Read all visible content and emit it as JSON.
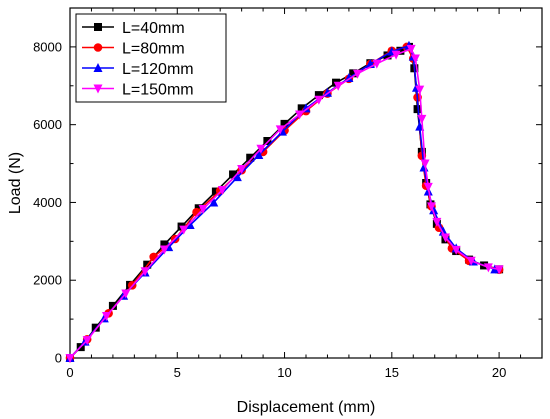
{
  "chart_data": {
    "type": "line",
    "xlabel": "Displacement (mm)",
    "ylabel": "Load (N)",
    "xlim": [
      0,
      22
    ],
    "ylim": [
      0,
      9000
    ],
    "x_ticks": [
      0,
      5,
      10,
      15,
      20
    ],
    "y_ticks": [
      0,
      2000,
      4000,
      6000,
      8000
    ],
    "x_minor_step": 1,
    "y_minor_step": 1000,
    "grid": false,
    "legend_position": "top-left",
    "series": [
      {
        "name": "L=40mm",
        "color": "#000000",
        "marker": "square",
        "points": [
          [
            0,
            0
          ],
          [
            0.5,
            280
          ],
          [
            1.2,
            780
          ],
          [
            2,
            1340
          ],
          [
            2.8,
            1880
          ],
          [
            3.6,
            2400
          ],
          [
            4.4,
            2920
          ],
          [
            5.2,
            3380
          ],
          [
            6,
            3850
          ],
          [
            6.8,
            4280
          ],
          [
            7.6,
            4720
          ],
          [
            8.4,
            5150
          ],
          [
            9.2,
            5580
          ],
          [
            10,
            6020
          ],
          [
            10.8,
            6420
          ],
          [
            11.6,
            6760
          ],
          [
            12.4,
            7080
          ],
          [
            13.2,
            7320
          ],
          [
            14,
            7580
          ],
          [
            14.8,
            7780
          ],
          [
            15.4,
            7900
          ],
          [
            15.8,
            8000
          ],
          [
            16.05,
            7450
          ],
          [
            16.2,
            6400
          ],
          [
            16.4,
            5300
          ],
          [
            16.6,
            4500
          ],
          [
            16.8,
            3950
          ],
          [
            17.1,
            3450
          ],
          [
            17.5,
            3050
          ],
          [
            18,
            2750
          ],
          [
            18.6,
            2530
          ],
          [
            19.3,
            2380
          ],
          [
            20,
            2280
          ]
        ]
      },
      {
        "name": "L=80mm",
        "color": "#ff0000",
        "marker": "circle",
        "points": [
          [
            0,
            0
          ],
          [
            0.8,
            480
          ],
          [
            1.8,
            1150
          ],
          [
            2.9,
            1870
          ],
          [
            3.9,
            2600
          ],
          [
            4.9,
            3060
          ],
          [
            5.9,
            3750
          ],
          [
            7,
            4300
          ],
          [
            8,
            4830
          ],
          [
            9,
            5300
          ],
          [
            10,
            5850
          ],
          [
            11,
            6350
          ],
          [
            12,
            6800
          ],
          [
            13,
            7180
          ],
          [
            14,
            7560
          ],
          [
            15,
            7900
          ],
          [
            15.7,
            8000
          ],
          [
            16,
            7700
          ],
          [
            16.2,
            6700
          ],
          [
            16.4,
            5200
          ],
          [
            16.6,
            4430
          ],
          [
            16.85,
            3900
          ],
          [
            17.2,
            3350
          ],
          [
            17.8,
            2820
          ],
          [
            18.6,
            2500
          ],
          [
            20,
            2270
          ]
        ]
      },
      {
        "name": "L=120mm",
        "color": "#0000ff",
        "marker": "triangle-up",
        "points": [
          [
            0,
            0
          ],
          [
            0.7,
            420
          ],
          [
            1.6,
            1020
          ],
          [
            2.5,
            1600
          ],
          [
            3.5,
            2200
          ],
          [
            4.6,
            2850
          ],
          [
            5.6,
            3420
          ],
          [
            6.7,
            4000
          ],
          [
            7.8,
            4650
          ],
          [
            8.8,
            5220
          ],
          [
            9.9,
            5820
          ],
          [
            11,
            6420
          ],
          [
            12,
            6820
          ],
          [
            13,
            7200
          ],
          [
            14,
            7560
          ],
          [
            15,
            7880
          ],
          [
            15.8,
            8030
          ],
          [
            16,
            7750
          ],
          [
            16.15,
            6950
          ],
          [
            16.3,
            5950
          ],
          [
            16.5,
            4900
          ],
          [
            16.7,
            4280
          ],
          [
            16.95,
            3800
          ],
          [
            17.4,
            3250
          ],
          [
            18,
            2820
          ],
          [
            18.8,
            2480
          ],
          [
            19.8,
            2280
          ]
        ]
      },
      {
        "name": "L=150mm",
        "color": "#ff00ff",
        "marker": "triangle-down",
        "points": [
          [
            0,
            0
          ],
          [
            0.8,
            460
          ],
          [
            1.7,
            1080
          ],
          [
            2.6,
            1660
          ],
          [
            3.5,
            2230
          ],
          [
            4.4,
            2790
          ],
          [
            5.3,
            3300
          ],
          [
            6.2,
            3830
          ],
          [
            7.1,
            4320
          ],
          [
            8,
            4860
          ],
          [
            8.9,
            5380
          ],
          [
            9.8,
            5880
          ],
          [
            10.7,
            6260
          ],
          [
            11.6,
            6640
          ],
          [
            12.5,
            7000
          ],
          [
            13.4,
            7310
          ],
          [
            14.3,
            7570
          ],
          [
            15.2,
            7800
          ],
          [
            15.9,
            7950
          ],
          [
            16.1,
            7700
          ],
          [
            16.3,
            6900
          ],
          [
            16.4,
            6150
          ],
          [
            16.55,
            5000
          ],
          [
            16.7,
            4400
          ],
          [
            16.85,
            3900
          ],
          [
            17.1,
            3500
          ],
          [
            17.5,
            3100
          ],
          [
            18,
            2780
          ],
          [
            18.7,
            2500
          ],
          [
            19.5,
            2330
          ],
          [
            20,
            2280
          ]
        ]
      }
    ]
  }
}
